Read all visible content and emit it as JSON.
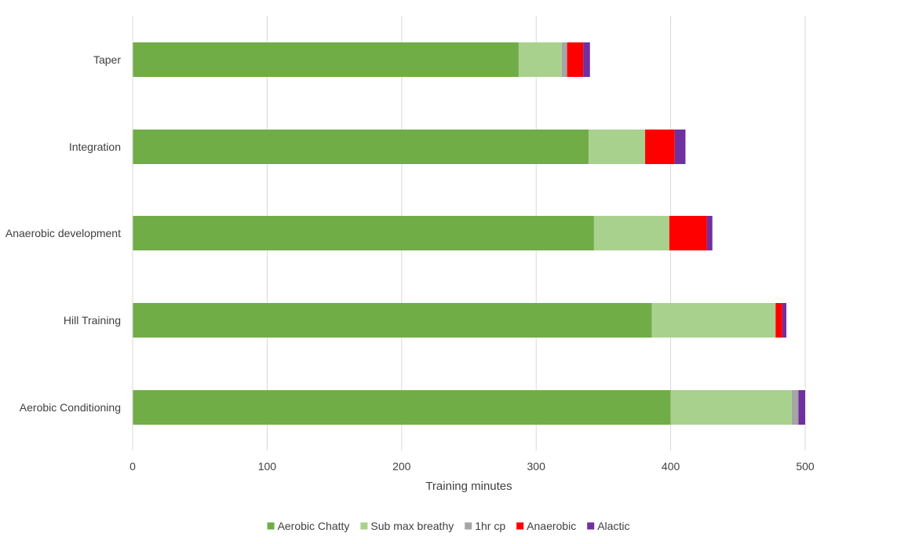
{
  "chart_data": {
    "type": "bar",
    "orientation": "horizontal",
    "stacked": true,
    "title": "",
    "xlabel": "Training minutes",
    "ylabel": "",
    "xlim": [
      0,
      500
    ],
    "x_ticks": [
      0,
      100,
      200,
      300,
      400,
      500
    ],
    "grid": true,
    "legend_position": "bottom",
    "categories": [
      "Aerobic Conditioning",
      "Hill Training",
      "Anaerobic development",
      "Integration",
      "Taper"
    ],
    "series": [
      {
        "name": "Aerobic Chatty",
        "color": "#70AD47",
        "values": [
          400,
          386,
          343,
          339,
          287
        ]
      },
      {
        "name": "Sub max breathy",
        "color": "#A9D18E",
        "values": [
          90,
          92,
          56,
          42,
          32
        ]
      },
      {
        "name": "1hr cp",
        "color": "#A5A5A5",
        "values": [
          5,
          0,
          0,
          0,
          4
        ]
      },
      {
        "name": "Anaerobic",
        "color": "#FF0000",
        "values": [
          0,
          5,
          28,
          22,
          12
        ]
      },
      {
        "name": "Alactic",
        "color": "#7030A0",
        "values": [
          5,
          3,
          4,
          8,
          5
        ]
      }
    ]
  }
}
